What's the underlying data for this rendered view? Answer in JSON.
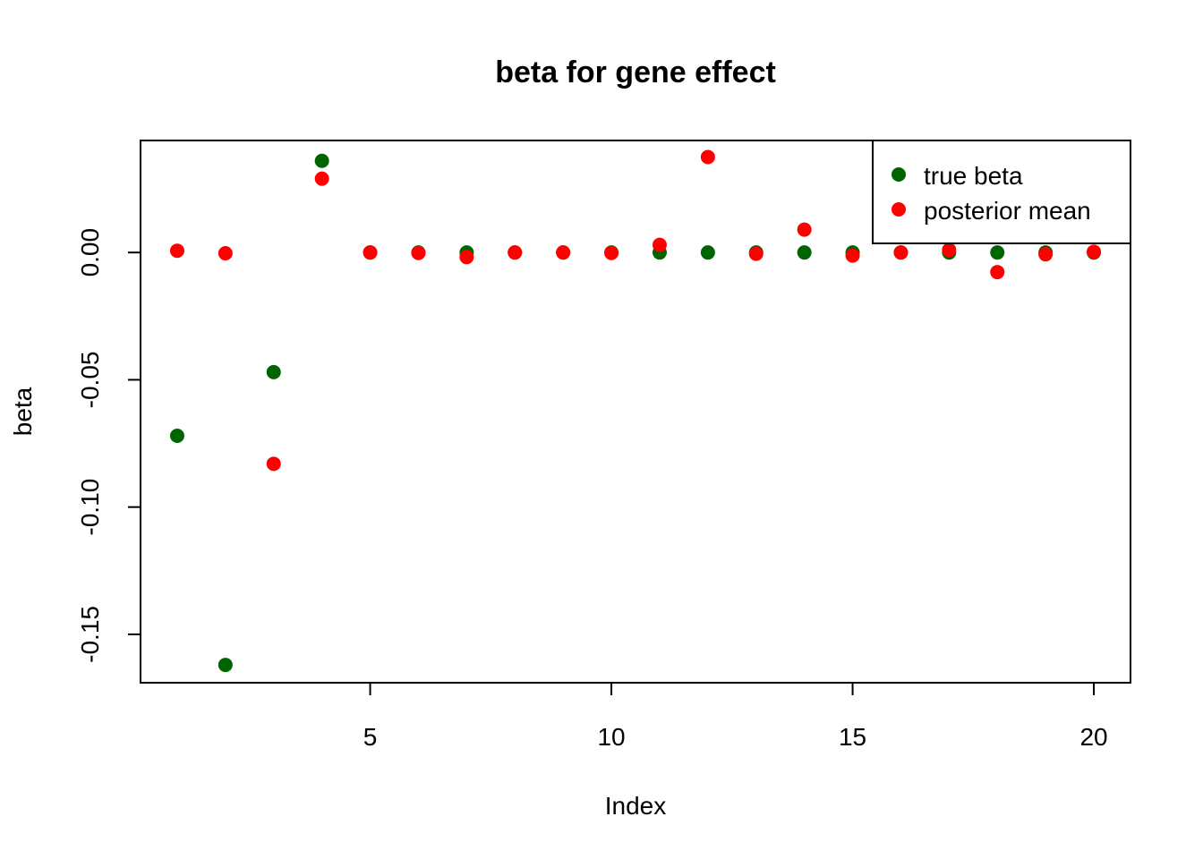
{
  "chart_data": {
    "type": "scatter",
    "title": "beta for gene effect",
    "xlabel": "Index",
    "ylabel": "beta",
    "xlim": [
      0.24,
      20.76
    ],
    "ylim": [
      -0.169,
      0.044
    ],
    "xticks": [
      5,
      10,
      15,
      20
    ],
    "xtick_labels": [
      "5",
      "10",
      "15",
      "20"
    ],
    "yticks": [
      -0.15,
      -0.1,
      -0.05,
      0.0
    ],
    "ytick_labels": [
      "-0.15",
      "-0.10",
      "-0.05",
      "0.00"
    ],
    "grid": false,
    "legend_position": "top-right",
    "x": [
      1,
      2,
      3,
      4,
      5,
      6,
      7,
      8,
      9,
      10,
      11,
      12,
      13,
      14,
      15,
      16,
      17,
      18,
      19,
      20
    ],
    "series": [
      {
        "name": "true beta",
        "color": "#006400",
        "values": [
          -0.072,
          -0.162,
          -0.047,
          0.036,
          0.0,
          0.0,
          0.0,
          0.0,
          0.0,
          0.0,
          0.0,
          0.0,
          0.0,
          0.0,
          0.0,
          0.0,
          0.0,
          0.0,
          0.0,
          0.0
        ]
      },
      {
        "name": "posterior mean",
        "color": "#ff0000",
        "values": [
          0.0007,
          -0.0003,
          -0.083,
          0.029,
          0.0,
          -0.0002,
          -0.0018,
          0.0,
          0.0,
          -0.0002,
          0.003,
          0.0375,
          -0.0005,
          0.009,
          -0.0012,
          0.0,
          0.001,
          -0.0077,
          -0.0007,
          0.0003
        ]
      }
    ]
  }
}
